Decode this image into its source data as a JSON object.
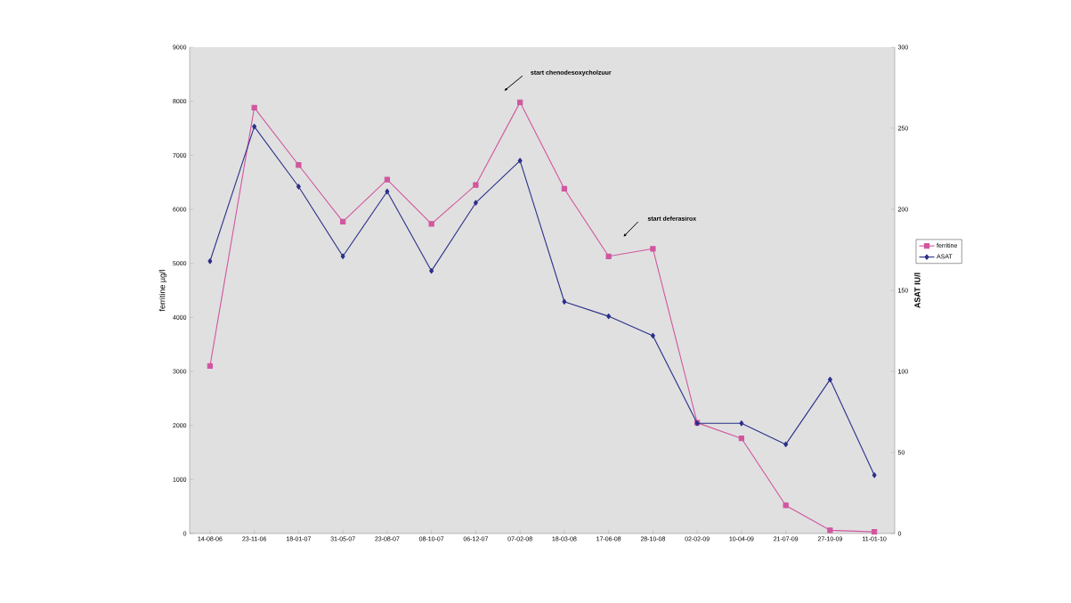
{
  "chart_data": {
    "type": "line",
    "categories": [
      "14-08-06",
      "23-11-06",
      "18-01-07",
      "31-05-07",
      "23-08-07",
      "08-10-07",
      "06-12-07",
      "07-02-08",
      "18-03-08",
      "17-06-08",
      "28-10-08",
      "02-02-09",
      "10-04-09",
      "21-07-09",
      "27-10-09",
      "11-01-10"
    ],
    "series": [
      {
        "name": "ferritine",
        "color": "#d0579f",
        "marker": "square",
        "values": [
          3100,
          7880,
          6820,
          5770,
          6550,
          5730,
          6450,
          7980,
          6380,
          5130,
          5270,
          2050,
          1760,
          520,
          60,
          30
        ]
      },
      {
        "name": "ASAT",
        "color": "#2b2f8a",
        "marker": "diamond",
        "axis": "y2",
        "values": [
          168,
          251,
          214,
          171,
          211,
          162,
          204,
          230,
          143,
          134,
          122,
          68,
          68,
          55,
          95,
          36
        ]
      }
    ],
    "ylabel": "ferritine µg/l",
    "y2label": "ASAT IU/l",
    "ylim": [
      0,
      9000
    ],
    "yticks": [
      0,
      1000,
      2000,
      3000,
      4000,
      5000,
      6000,
      7000,
      8000,
      9000
    ],
    "y2lim": [
      0,
      300
    ],
    "y2ticks": [
      0,
      50,
      100,
      150,
      200,
      250,
      300
    ],
    "annotations": [
      "start chenodesoxycholzuur",
      "start deferasirox"
    ],
    "grid": false,
    "legend": "right"
  }
}
